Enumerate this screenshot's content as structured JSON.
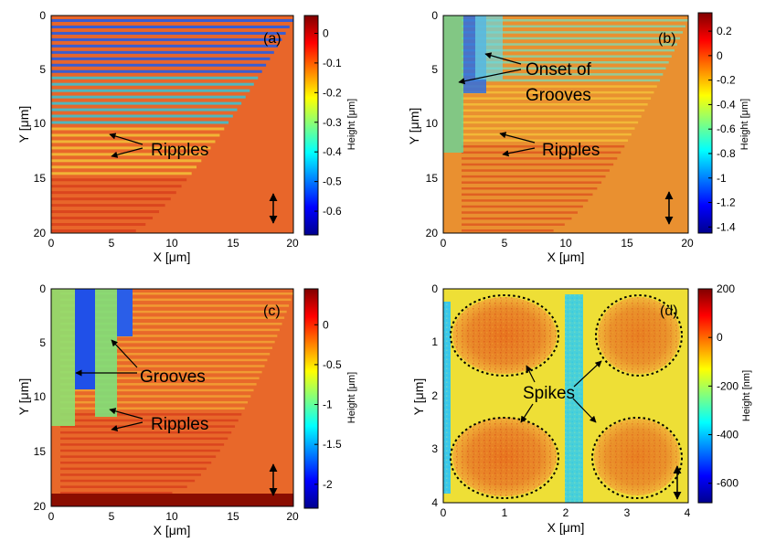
{
  "chart_data": [
    {
      "type": "heatmap",
      "panel_label": "(a)",
      "xlabel": "X [μm]",
      "ylabel": "Y [μm]",
      "xlim": [
        0,
        20
      ],
      "ylim": [
        0,
        20
      ],
      "y_reversed": true,
      "x_ticks": [
        "0",
        "5",
        "10",
        "15",
        "20"
      ],
      "y_ticks": [
        "0",
        "5",
        "10",
        "15",
        "20"
      ],
      "colorbar": {
        "label": "Height [μm]",
        "range": [
          -0.68,
          0.06
        ],
        "ticks": [
          "0",
          "-0.1",
          "-0.2",
          "-0.3",
          "-0.4",
          "-0.5",
          "-0.6"
        ],
        "tick_values": [
          0,
          -0.1,
          -0.2,
          -0.3,
          -0.4,
          -0.5,
          -0.6
        ]
      },
      "annotations": [
        "Ripples"
      ],
      "polarization_arrow": "vertical"
    },
    {
      "type": "heatmap",
      "panel_label": "(b)",
      "xlabel": "X [μm]",
      "ylabel": "Y [μm]",
      "xlim": [
        0,
        20
      ],
      "ylim": [
        0,
        20
      ],
      "y_reversed": true,
      "x_ticks": [
        "0",
        "5",
        "10",
        "15",
        "20"
      ],
      "y_ticks": [
        "0",
        "5",
        "10",
        "15",
        "20"
      ],
      "colorbar": {
        "label": "Height [μm]",
        "range": [
          -1.45,
          0.35
        ],
        "ticks": [
          "0.2",
          "0",
          "-0.2",
          "-0.4",
          "-0.6",
          "-0.8",
          "-1",
          "-1.2",
          "-1.4"
        ],
        "tick_values": [
          0.2,
          0,
          -0.2,
          -0.4,
          -0.6,
          -0.8,
          -1,
          -1.2,
          -1.4
        ]
      },
      "annotations": [
        "Onset of",
        "Grooves",
        "Ripples"
      ],
      "polarization_arrow": "vertical"
    },
    {
      "type": "heatmap",
      "panel_label": "(c)",
      "xlabel": "X [μm]",
      "ylabel": "Y [μm]",
      "xlim": [
        0,
        20
      ],
      "ylim": [
        0,
        20
      ],
      "y_reversed": true,
      "x_ticks": [
        "0",
        "5",
        "10",
        "15",
        "20"
      ],
      "y_ticks": [
        "0",
        "5",
        "10",
        "15",
        "20"
      ],
      "colorbar": {
        "label": "Height [μm]",
        "range": [
          -2.3,
          0.45
        ],
        "ticks": [
          "0",
          "-0.5",
          "-1",
          "-1.5",
          "-2"
        ],
        "tick_values": [
          0,
          -0.5,
          -1,
          -1.5,
          -2
        ]
      },
      "annotations": [
        "Grooves",
        "Ripples"
      ],
      "polarization_arrow": "vertical"
    },
    {
      "type": "heatmap",
      "panel_label": "(d)",
      "xlabel": "X [μm]",
      "ylabel": "Y [μm]",
      "xlim": [
        0,
        4
      ],
      "ylim": [
        0,
        4
      ],
      "y_reversed": true,
      "x_ticks": [
        "0",
        "1",
        "2",
        "3",
        "4"
      ],
      "y_ticks": [
        "0",
        "1",
        "2",
        "3",
        "4"
      ],
      "colorbar": {
        "label": "Height [nm]",
        "range": [
          -680,
          200
        ],
        "ticks": [
          "200",
          "0",
          "-200",
          "-400",
          "-600"
        ],
        "tick_values": [
          200,
          0,
          -200,
          -400,
          -600
        ]
      },
      "annotations": [
        "Spikes"
      ],
      "polarization_arrow": "vertical"
    }
  ]
}
